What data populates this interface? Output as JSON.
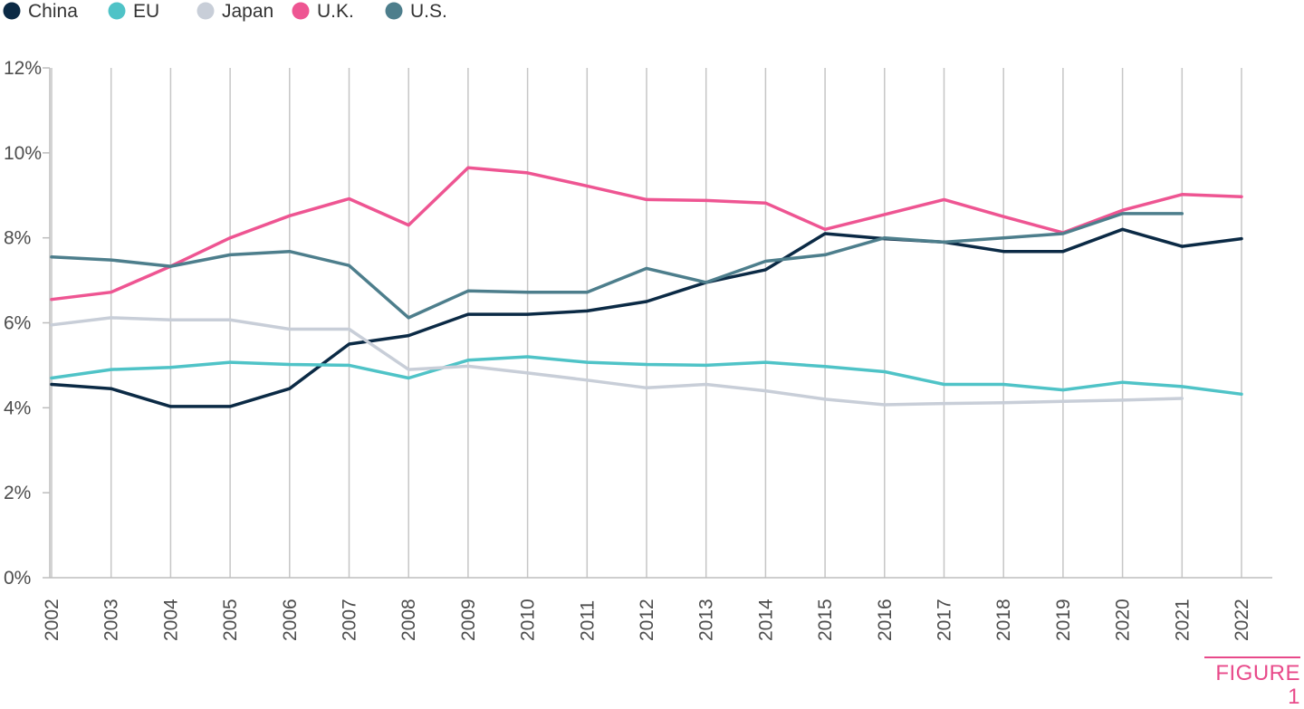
{
  "figure_label": "FIGURE 1",
  "chart_data": {
    "type": "line",
    "title": "",
    "xlabel": "",
    "ylabel": "",
    "ylim": [
      0,
      12
    ],
    "yticks": [
      0,
      2,
      4,
      6,
      8,
      10,
      12
    ],
    "y_tick_format": "%",
    "grid": "vertical",
    "legend": "top-left",
    "x": [
      "2002",
      "2003",
      "2004",
      "2005",
      "2006",
      "2007",
      "2008",
      "2009",
      "2010",
      "2011",
      "2012",
      "2013",
      "2014",
      "2015",
      "2016",
      "2017",
      "2018",
      "2019",
      "2020",
      "2021",
      "2022"
    ],
    "series": [
      {
        "name": "China",
        "color": "#0b2a45",
        "values": [
          4.55,
          4.45,
          4.03,
          4.03,
          4.45,
          5.5,
          5.7,
          6.2,
          6.2,
          6.28,
          6.5,
          6.95,
          7.25,
          8.1,
          7.98,
          7.9,
          7.68,
          7.68,
          8.2,
          7.8,
          7.98
        ]
      },
      {
        "name": "EU",
        "color": "#4fc3c7",
        "values": [
          4.7,
          4.9,
          4.95,
          5.07,
          5.02,
          5.0,
          4.7,
          5.12,
          5.2,
          5.07,
          5.02,
          5.0,
          5.07,
          4.97,
          4.85,
          4.55,
          4.55,
          4.42,
          4.6,
          4.5,
          4.32
        ]
      },
      {
        "name": "Japan",
        "color": "#c8ced8",
        "values": [
          5.95,
          6.12,
          6.07,
          6.07,
          5.85,
          5.85,
          4.9,
          4.98,
          4.82,
          4.65,
          4.47,
          4.55,
          4.4,
          4.2,
          4.07,
          4.1,
          4.12,
          4.15,
          4.18,
          4.22,
          null
        ]
      },
      {
        "name": "U.K.",
        "color": "#ee5592",
        "values": [
          6.55,
          6.72,
          7.33,
          8.0,
          8.52,
          8.92,
          8.3,
          9.65,
          9.53,
          9.22,
          8.9,
          8.88,
          8.82,
          8.2,
          8.55,
          8.9,
          8.5,
          8.12,
          8.65,
          9.02,
          8.97
        ]
      },
      {
        "name": "U.S.",
        "color": "#4d7e8c",
        "values": [
          7.55,
          7.48,
          7.33,
          7.6,
          7.68,
          7.35,
          6.12,
          6.75,
          6.72,
          6.72,
          7.28,
          6.95,
          7.45,
          7.6,
          8.0,
          7.9,
          8.0,
          8.1,
          8.57,
          8.57,
          null
        ]
      }
    ]
  }
}
